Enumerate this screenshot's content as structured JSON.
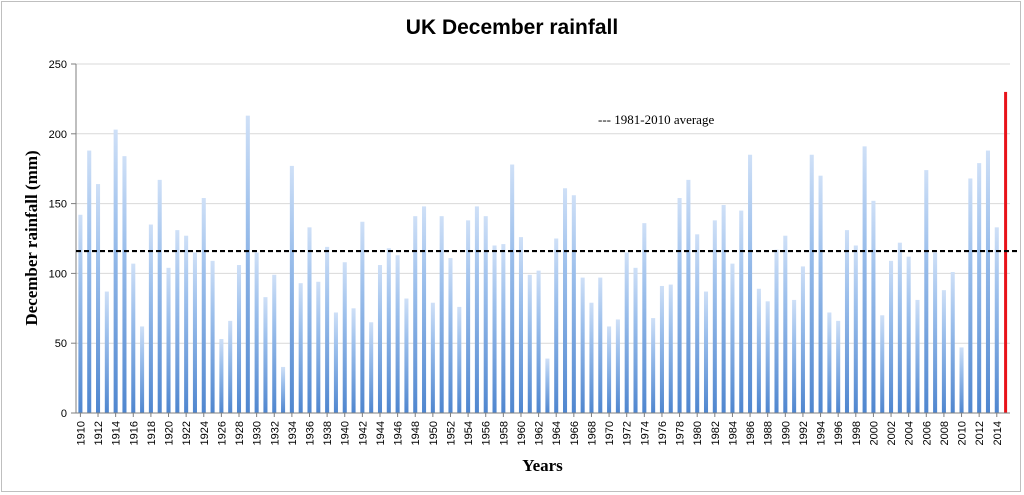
{
  "chart_data": {
    "type": "bar",
    "title": "UK December rainfall",
    "xlabel": "Years",
    "ylabel": "December rainfall (mm)",
    "ylim": [
      0,
      250
    ],
    "yticks": [
      0,
      50,
      100,
      150,
      200,
      250
    ],
    "grid": true,
    "x": [
      1910,
      1911,
      1912,
      1913,
      1914,
      1915,
      1916,
      1917,
      1918,
      1919,
      1920,
      1921,
      1922,
      1923,
      1924,
      1925,
      1926,
      1927,
      1928,
      1929,
      1930,
      1931,
      1932,
      1933,
      1934,
      1935,
      1936,
      1937,
      1938,
      1939,
      1940,
      1941,
      1942,
      1943,
      1944,
      1945,
      1946,
      1947,
      1948,
      1949,
      1950,
      1951,
      1952,
      1953,
      1954,
      1955,
      1956,
      1957,
      1958,
      1959,
      1960,
      1961,
      1962,
      1963,
      1964,
      1965,
      1966,
      1967,
      1968,
      1969,
      1970,
      1971,
      1972,
      1973,
      1974,
      1975,
      1976,
      1977,
      1978,
      1979,
      1980,
      1981,
      1982,
      1983,
      1984,
      1985,
      1986,
      1987,
      1988,
      1989,
      1990,
      1991,
      1992,
      1993,
      1994,
      1995,
      1996,
      1997,
      1998,
      1999,
      2000,
      2001,
      2002,
      2003,
      2004,
      2005,
      2006,
      2007,
      2008,
      2009,
      2010,
      2011,
      2012,
      2013,
      2014,
      2015
    ],
    "xtick_labels": [
      "1910",
      "1912",
      "1914",
      "1916",
      "1918",
      "1920",
      "1922",
      "1924",
      "1926",
      "1928",
      "1930",
      "1932",
      "1934",
      "1936",
      "1938",
      "1940",
      "1942",
      "1944",
      "1946",
      "1948",
      "1950",
      "1952",
      "1954",
      "1956",
      "1958",
      "1960",
      "1962",
      "1964",
      "1966",
      "1968",
      "1970",
      "1972",
      "1974",
      "1976",
      "1978",
      "1980",
      "1982",
      "1984",
      "1986",
      "1988",
      "1990",
      "1992",
      "1994",
      "1996",
      "1998",
      "2000",
      "2002",
      "2004",
      "2006",
      "2008",
      "2010",
      "2012",
      "2014"
    ],
    "values": [
      142,
      188,
      164,
      87,
      203,
      184,
      107,
      62,
      135,
      167,
      104,
      131,
      127,
      115,
      154,
      109,
      53,
      66,
      106,
      213,
      115,
      83,
      99,
      33,
      177,
      93,
      133,
      94,
      119,
      72,
      108,
      75,
      137,
      65,
      106,
      118,
      113,
      82,
      141,
      148,
      79,
      141,
      111,
      76,
      138,
      148,
      141,
      120,
      121,
      178,
      126,
      99,
      102,
      39,
      125,
      161,
      156,
      97,
      79,
      97,
      62,
      67,
      115,
      104,
      136,
      68,
      91,
      92,
      154,
      167,
      128,
      87,
      138,
      149,
      107,
      145,
      185,
      89,
      80,
      117,
      127,
      81,
      105,
      185,
      170,
      72,
      66,
      131,
      120,
      191,
      152,
      70,
      109,
      122,
      112,
      81,
      174,
      115,
      88,
      101,
      47,
      168,
      179,
      188,
      133,
      230
    ],
    "highlight": {
      "year": 2015,
      "value": 230,
      "color": "#e8131a"
    },
    "bar_color": "#7fa9e0",
    "average": {
      "value": 116,
      "label": "--- 1981-2010 average"
    }
  }
}
